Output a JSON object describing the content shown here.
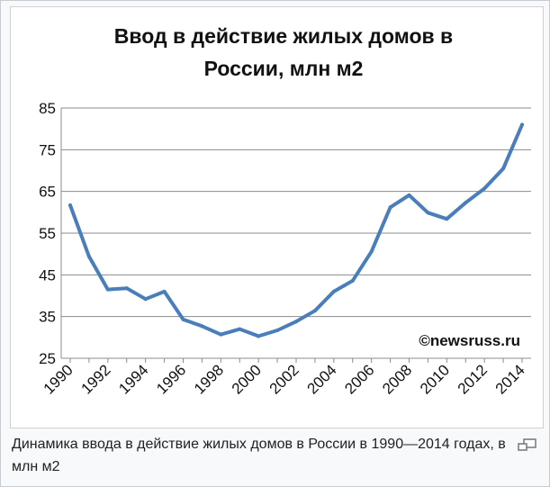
{
  "caption": "Динамика ввода в действие жилых домов в России в 1990—2014 годах, в млн м2",
  "icons": {
    "enlarge": "magnify-clip-icon"
  },
  "colors": {
    "line": "#4a7ebb",
    "grid": "#8c8c8c",
    "axis": "#8c8c8c",
    "frame": "#c8ccd1"
  },
  "chart_data": {
    "type": "line",
    "title_lines": [
      "Ввод в действие жилых домов в",
      "России, млн м2"
    ],
    "watermark": "©newsruss.ru",
    "xlabel": "",
    "ylabel": "",
    "ylim": [
      25,
      85
    ],
    "yticks": [
      25,
      35,
      45,
      55,
      65,
      75,
      85
    ],
    "xtick_labels": [
      "1990",
      "1992",
      "1994",
      "1996",
      "1998",
      "2000",
      "2002",
      "2004",
      "2006",
      "2008",
      "2010",
      "2012",
      "2014"
    ],
    "grid": true,
    "legend": "none",
    "x": [
      1990,
      1991,
      1992,
      1993,
      1994,
      1995,
      1996,
      1997,
      1998,
      1999,
      2000,
      2001,
      2002,
      2003,
      2004,
      2005,
      2006,
      2007,
      2008,
      2009,
      2010,
      2011,
      2012,
      2013,
      2014
    ],
    "values": [
      61.7,
      49.4,
      41.5,
      41.8,
      39.2,
      41.0,
      34.3,
      32.7,
      30.7,
      32.0,
      30.3,
      31.7,
      33.8,
      36.4,
      41.0,
      43.6,
      50.6,
      61.2,
      64.1,
      59.9,
      58.4,
      62.3,
      65.7,
      70.5,
      81.0
    ]
  }
}
